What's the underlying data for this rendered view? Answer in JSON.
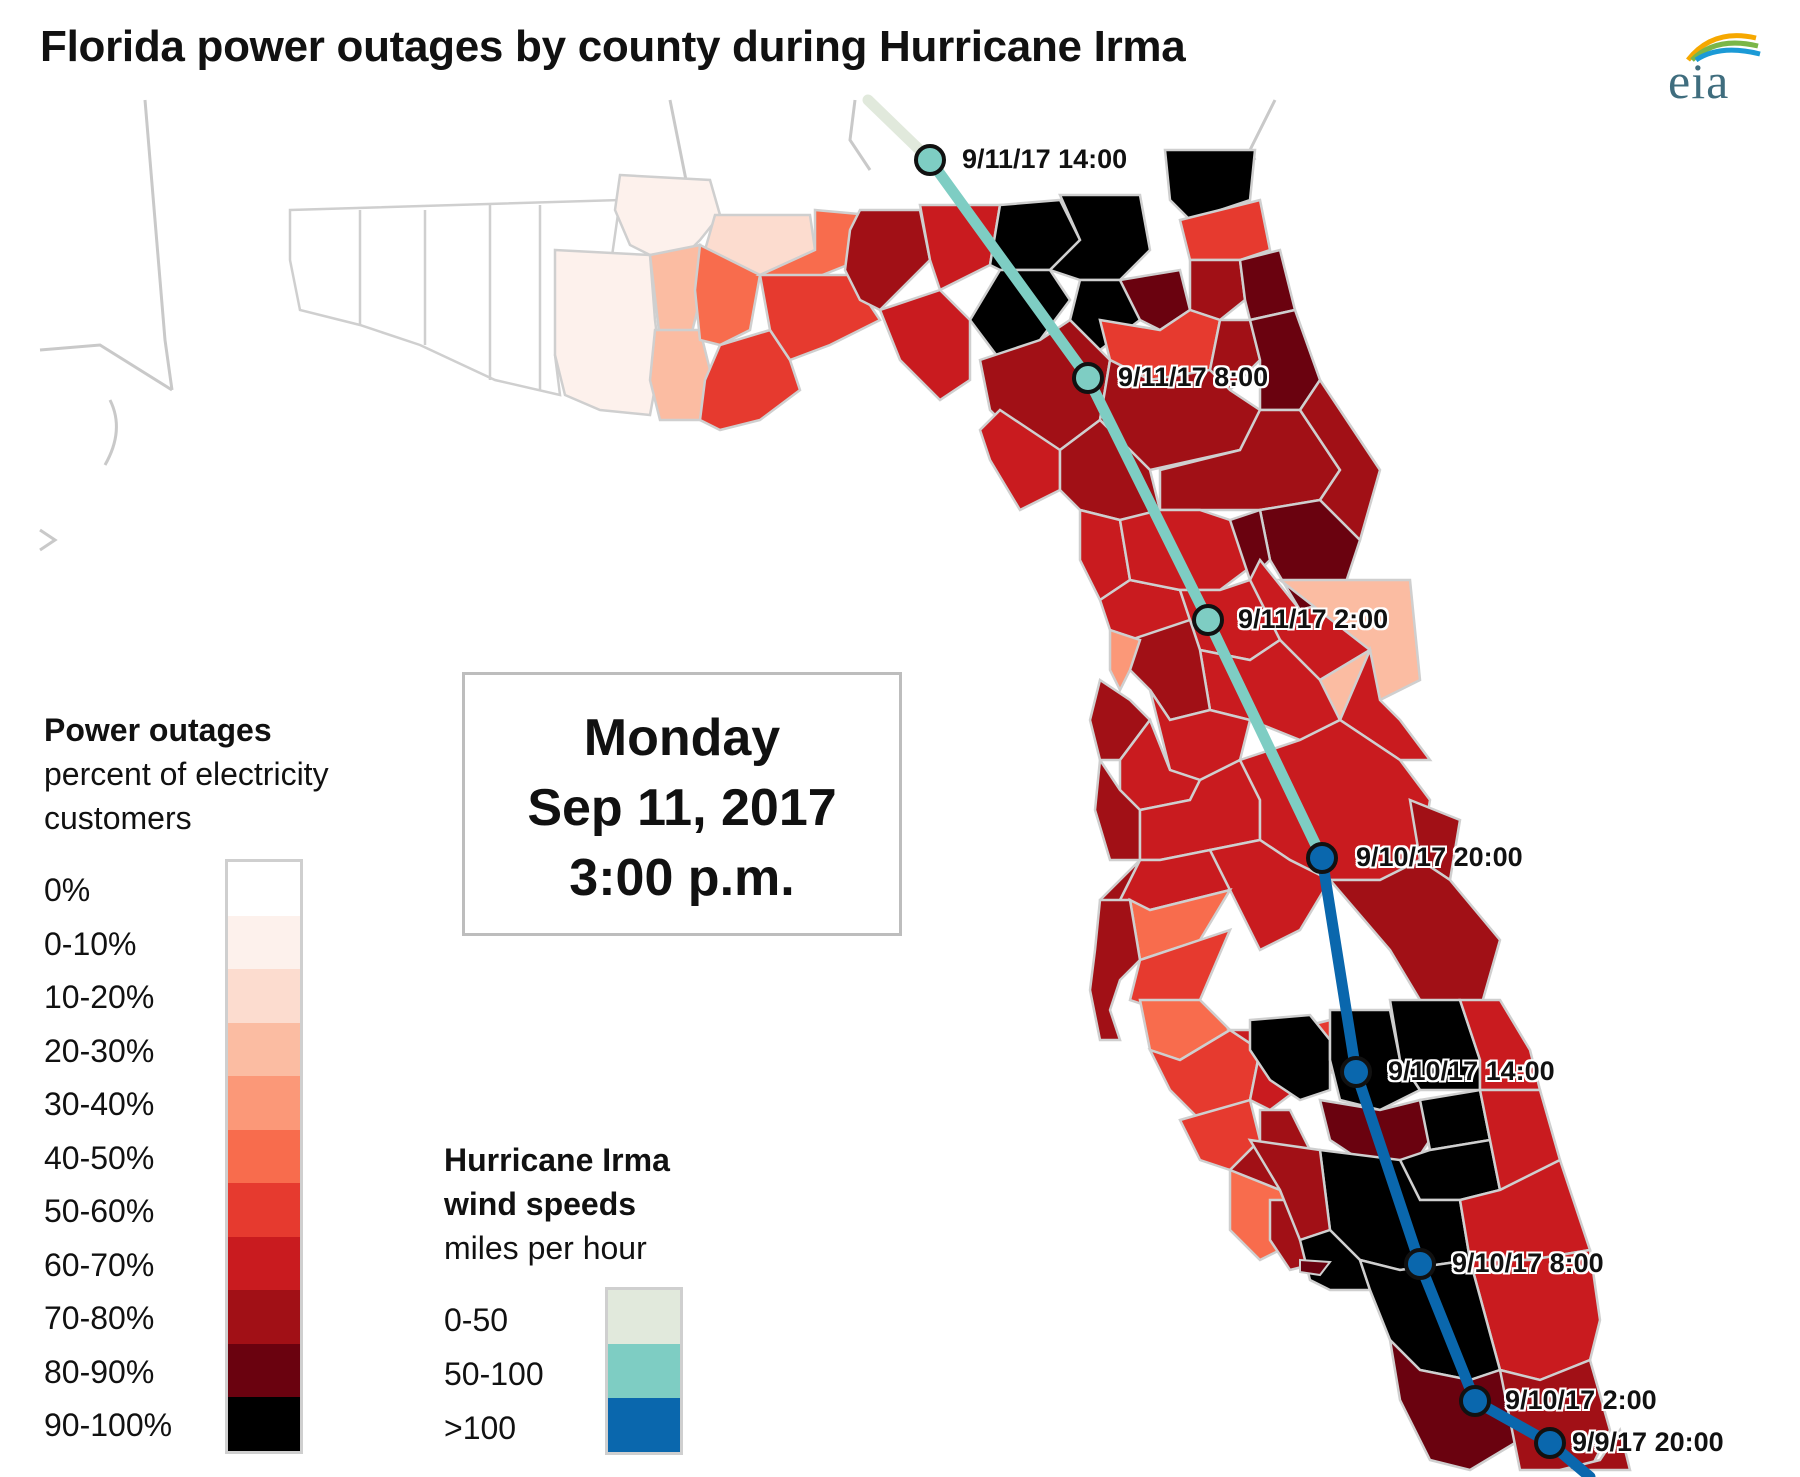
{
  "title": "Florida power outages by county during Hurricane Irma",
  "logo_text": "eia",
  "date_box": {
    "day": "Monday",
    "date": "Sep 11, 2017",
    "time": "3:00 p.m."
  },
  "outage_legend": {
    "title": "Power outages",
    "subtitle_line1": "percent of electricity",
    "subtitle_line2": "customers",
    "classes": [
      {
        "label": "0%",
        "color": "#ffffff"
      },
      {
        "label": "0-10%",
        "color": "#fdf1ec"
      },
      {
        "label": "10-20%",
        "color": "#fcdccf"
      },
      {
        "label": "20-30%",
        "color": "#fbbca2"
      },
      {
        "label": "30-40%",
        "color": "#fb9878"
      },
      {
        "label": "40-50%",
        "color": "#f86c4d"
      },
      {
        "label": "50-60%",
        "color": "#e63a2f"
      },
      {
        "label": "60-70%",
        "color": "#c91b1f"
      },
      {
        "label": "70-80%",
        "color": "#a11016"
      },
      {
        "label": "80-90%",
        "color": "#6a020f"
      },
      {
        "label": "90-100%",
        "color": "#000000"
      }
    ]
  },
  "wind_legend": {
    "title_line1": "Hurricane Irma",
    "title_line2": "wind speeds",
    "subtitle": "miles per hour",
    "classes": [
      {
        "label": "0-50",
        "color": "#e1e9dc"
      },
      {
        "label": "50-100",
        "color": "#7ecdc3"
      },
      {
        "label": ">100",
        "color": "#0a67ad"
      }
    ]
  },
  "track_points": [
    {
      "label": "9/11/17 14:00",
      "wind_class": "50-100"
    },
    {
      "label": "9/11/17 8:00",
      "wind_class": "50-100"
    },
    {
      "label": "9/11/17 2:00",
      "wind_class": "50-100"
    },
    {
      "label": "9/10/17 20:00",
      "wind_class": ">100"
    },
    {
      "label": "9/10/17 14:00",
      "wind_class": ">100"
    },
    {
      "label": "9/10/17 8:00",
      "wind_class": ">100"
    },
    {
      "label": "9/10/17 2:00",
      "wind_class": ">100"
    },
    {
      "label": "9/9/17 20:00",
      "wind_class": ">100"
    }
  ]
}
